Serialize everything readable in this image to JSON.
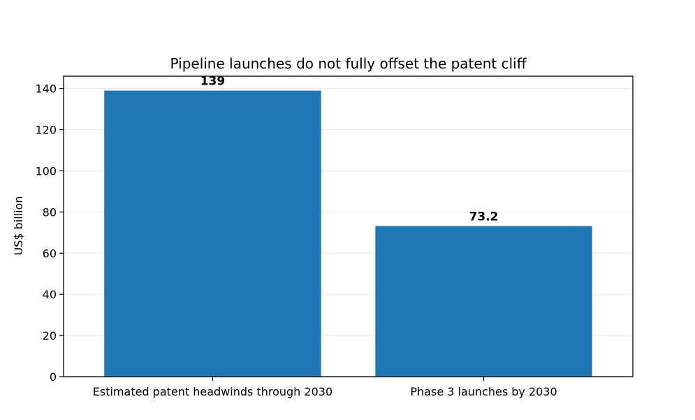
{
  "chart_data": {
    "type": "bar",
    "title": "Pipeline launches do not fully offset the patent cliff",
    "xlabel": "",
    "ylabel": "US$ billion",
    "categories": [
      "Estimated patent headwinds through 2030",
      "Phase 3 launches by 2030"
    ],
    "values": [
      139,
      73.2
    ],
    "data_labels": [
      "139",
      "73.2"
    ],
    "yticks": [
      0,
      20,
      40,
      60,
      80,
      100,
      120,
      140
    ],
    "ylim": [
      0,
      146
    ],
    "grid": true,
    "bar_color": "#1f77b4",
    "grid_color": "#e6e6e6"
  }
}
